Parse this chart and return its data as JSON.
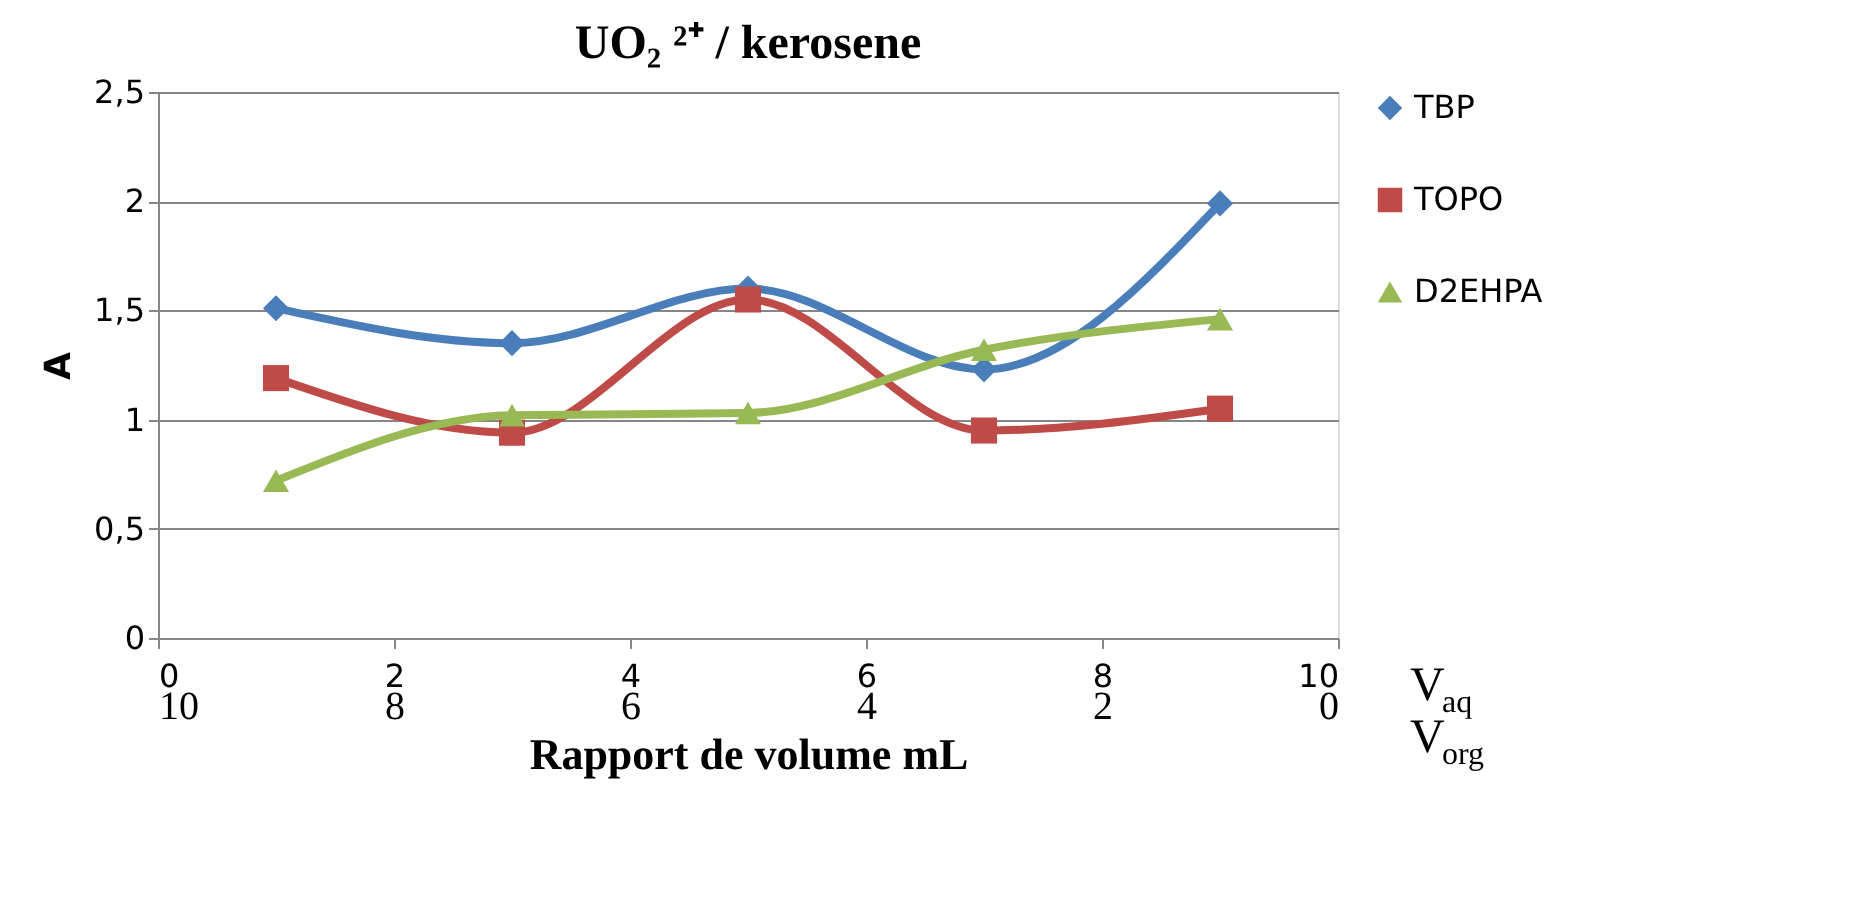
{
  "chart_data": {
    "type": "line",
    "title": "UO₂ ²⁺ / kerosene",
    "xlabel": "Rapport de volume mL",
    "ylabel": "A",
    "x": [
      1,
      3,
      5,
      7,
      9
    ],
    "series": [
      {
        "name": "TBP",
        "color": "#4a7ebb",
        "marker": "diamond",
        "values": [
          1.51,
          1.35,
          1.6,
          1.23,
          1.99
        ]
      },
      {
        "name": "TOPO",
        "color": "#be4b48",
        "marker": "square",
        "values": [
          1.19,
          0.94,
          1.55,
          0.95,
          1.05
        ]
      },
      {
        "name": "D2EHPA",
        "color": "#98b954",
        "marker": "triangle",
        "values": [
          0.72,
          1.02,
          1.03,
          1.32,
          1.46
        ]
      }
    ],
    "xlim": [
      0,
      10
    ],
    "xticks": [
      0,
      2,
      4,
      6,
      8,
      10
    ],
    "x2lim": [
      10,
      0
    ],
    "x2ticks": [
      10,
      8,
      6,
      4,
      2,
      0
    ],
    "ylim": [
      0,
      2.5
    ],
    "yticks": [
      0,
      {
        "value": 0.5,
        "label": "0,5"
      },
      1,
      {
        "value": 1.5,
        "label": "1,5"
      },
      2,
      {
        "value": 2.5,
        "label": "2,5"
      }
    ],
    "annotations": [
      "V$_{aq}$",
      "V$_{org}$"
    ],
    "grid": "y",
    "legend": "right",
    "line_style": "solid"
  }
}
